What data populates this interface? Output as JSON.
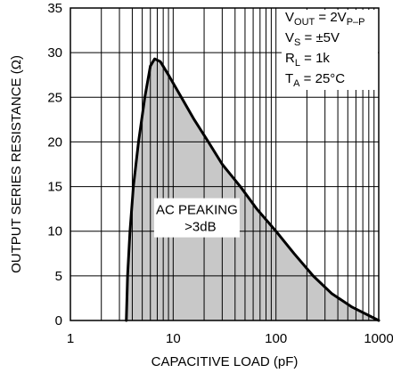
{
  "chart_data": {
    "type": "area",
    "xlabel": "CAPACITIVE LOAD (pF)",
    "ylabel": "OUTPUT SERIES RESISTANCE (Ω)",
    "x_scale": "log",
    "xlim": [
      1,
      1000
    ],
    "ylim": [
      0,
      35
    ],
    "x_ticks": [
      1,
      10,
      100,
      1000
    ],
    "x_tick_labels": [
      "1",
      "10",
      "100",
      "1000"
    ],
    "y_ticks": [
      0,
      5,
      10,
      15,
      20,
      25,
      30,
      35
    ],
    "y_tick_labels": [
      "0",
      "5",
      "10",
      "15",
      "20",
      "25",
      "30",
      "35"
    ],
    "grid": true,
    "fill_color": "#c8c8c8",
    "line_color": "#000000",
    "conditions": {
      "vout": {
        "main": "V",
        "sub": "OUT",
        "rest": " = 2V",
        "sub2": "P–P"
      },
      "vs": {
        "main": "V",
        "sub": "S",
        "rest": " = ±5V"
      },
      "rl": {
        "main": "R",
        "sub": "L",
        "rest": " = 1k"
      },
      "ta": {
        "main": "T",
        "sub": "A",
        "rest": " = 25°C"
      }
    },
    "region_label": {
      "line1": "AC PEAKING",
      "line2": ">3dB",
      "x": 17,
      "y": 13
    },
    "curve": [
      {
        "x": 3.5,
        "y": 0
      },
      {
        "x": 3.6,
        "y": 5
      },
      {
        "x": 3.8,
        "y": 10
      },
      {
        "x": 4.1,
        "y": 15
      },
      {
        "x": 4.6,
        "y": 20
      },
      {
        "x": 5.3,
        "y": 25
      },
      {
        "x": 6.0,
        "y": 28.5
      },
      {
        "x": 6.6,
        "y": 29.3
      },
      {
        "x": 7.5,
        "y": 29.0
      },
      {
        "x": 9.0,
        "y": 27.5
      },
      {
        "x": 12,
        "y": 25
      },
      {
        "x": 16,
        "y": 22.5
      },
      {
        "x": 22,
        "y": 20
      },
      {
        "x": 30,
        "y": 17.5
      },
      {
        "x": 45,
        "y": 15
      },
      {
        "x": 65,
        "y": 12.5
      },
      {
        "x": 100,
        "y": 10
      },
      {
        "x": 150,
        "y": 7.5
      },
      {
        "x": 230,
        "y": 5
      },
      {
        "x": 350,
        "y": 3
      },
      {
        "x": 550,
        "y": 1.5
      },
      {
        "x": 1000,
        "y": 0
      }
    ]
  }
}
